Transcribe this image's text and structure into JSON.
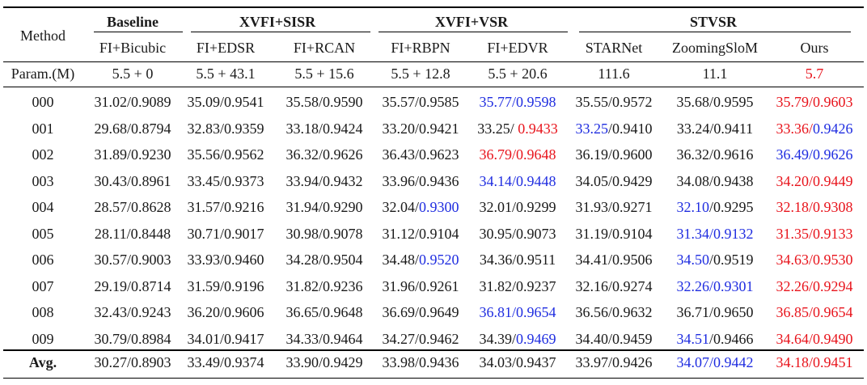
{
  "table": {
    "method_header": "Method",
    "groups": [
      {
        "label": "Baseline"
      },
      {
        "label": "XVFI+SISR"
      },
      {
        "label": "XVFI+VSR"
      },
      {
        "label": "STVSR"
      }
    ],
    "methods": [
      "FI+Bicubic",
      "FI+EDSR",
      "FI+RCAN",
      "FI+RBPN",
      "FI+EDVR",
      "STARNet",
      "ZoomingSloM",
      "Ours"
    ],
    "params_label": "Param.(M)",
    "params": [
      "5.5 + 0",
      "5.5 + 43.1",
      "5.5 + 15.6",
      "5.5 + 12.8",
      "5.5 + 20.6",
      "111.6",
      "11.1",
      "5.7"
    ],
    "params_colors": [
      "",
      "",
      "",
      "",
      "",
      "",
      "",
      "red"
    ],
    "rows": [
      {
        "label": "000",
        "cells": [
          {
            "a": "31.02/0.9089",
            "b": "",
            "ca": "",
            "cb": ""
          },
          {
            "a": "35.09/0.9541",
            "b": "",
            "ca": "",
            "cb": ""
          },
          {
            "a": "35.58/0.9590",
            "b": "",
            "ca": "",
            "cb": ""
          },
          {
            "a": "35.57/0.9585",
            "b": "",
            "ca": "",
            "cb": ""
          },
          {
            "a": "35.77/",
            "b": "0.9598",
            "ca": "blue",
            "cb": "blue"
          },
          {
            "a": "35.55/0.9572",
            "b": "",
            "ca": "",
            "cb": ""
          },
          {
            "a": "35.68/0.9595",
            "b": "",
            "ca": "",
            "cb": ""
          },
          {
            "a": "35.79/",
            "b": "0.9603",
            "ca": "red",
            "cb": "red"
          }
        ]
      },
      {
        "label": "001",
        "cells": [
          {
            "a": "29.68/0.8794",
            "b": "",
            "ca": "",
            "cb": ""
          },
          {
            "a": "32.83/0.9359",
            "b": "",
            "ca": "",
            "cb": ""
          },
          {
            "a": "33.18/0.9424",
            "b": "",
            "ca": "",
            "cb": ""
          },
          {
            "a": "33.20/0.9421",
            "b": "",
            "ca": "",
            "cb": ""
          },
          {
            "a": "33.25/ ",
            "b": "0.9433",
            "ca": "",
            "cb": "red"
          },
          {
            "a": "33.25",
            "b": "/0.9410",
            "ca": "blue",
            "cb": ""
          },
          {
            "a": "33.24/0.9411",
            "b": "",
            "ca": "",
            "cb": ""
          },
          {
            "a": "33.36/",
            "b": "0.9426",
            "ca": "red",
            "cb": "blue"
          }
        ]
      },
      {
        "label": "002",
        "cells": [
          {
            "a": "31.89/0.9230",
            "b": "",
            "ca": "",
            "cb": ""
          },
          {
            "a": "35.56/0.9562",
            "b": "",
            "ca": "",
            "cb": ""
          },
          {
            "a": "36.32/0.9626",
            "b": "",
            "ca": "",
            "cb": ""
          },
          {
            "a": "36.43/0.9623",
            "b": "",
            "ca": "",
            "cb": ""
          },
          {
            "a": "36.79/",
            "b": "0.9648",
            "ca": "red",
            "cb": "red"
          },
          {
            "a": "36.19/0.9600",
            "b": "",
            "ca": "",
            "cb": ""
          },
          {
            "a": "36.32/0.9616",
            "b": "",
            "ca": "",
            "cb": ""
          },
          {
            "a": "36.49/",
            "b": "0.9626",
            "ca": "blue",
            "cb": "blue"
          }
        ]
      },
      {
        "label": "003",
        "cells": [
          {
            "a": "30.43/0.8961",
            "b": "",
            "ca": "",
            "cb": ""
          },
          {
            "a": "33.45/0.9373",
            "b": "",
            "ca": "",
            "cb": ""
          },
          {
            "a": "33.94/0.9432",
            "b": "",
            "ca": "",
            "cb": ""
          },
          {
            "a": "33.96/0.9436",
            "b": "",
            "ca": "",
            "cb": ""
          },
          {
            "a": "34.14/",
            "b": "0.9448",
            "ca": "blue",
            "cb": "blue"
          },
          {
            "a": "34.05/0.9429",
            "b": "",
            "ca": "",
            "cb": ""
          },
          {
            "a": "34.08/0.9438",
            "b": "",
            "ca": "",
            "cb": ""
          },
          {
            "a": "34.20/",
            "b": "0.9449",
            "ca": "red",
            "cb": "red"
          }
        ]
      },
      {
        "label": "004",
        "cells": [
          {
            "a": "28.57/0.8628",
            "b": "",
            "ca": "",
            "cb": ""
          },
          {
            "a": "31.57/0.9216",
            "b": "",
            "ca": "",
            "cb": ""
          },
          {
            "a": "31.94/0.9290",
            "b": "",
            "ca": "",
            "cb": ""
          },
          {
            "a": "32.04/",
            "b": "0.9300",
            "ca": "",
            "cb": "blue"
          },
          {
            "a": "32.01/0.9299",
            "b": "",
            "ca": "",
            "cb": ""
          },
          {
            "a": "31.93/0.9271",
            "b": "",
            "ca": "",
            "cb": ""
          },
          {
            "a": "32.10",
            "b": "/0.9295",
            "ca": "blue",
            "cb": ""
          },
          {
            "a": "32.18/",
            "b": "0.9308",
            "ca": "red",
            "cb": "red"
          }
        ]
      },
      {
        "label": "005",
        "cells": [
          {
            "a": "28.11/0.8448",
            "b": "",
            "ca": "",
            "cb": ""
          },
          {
            "a": "30.71/0.9017",
            "b": "",
            "ca": "",
            "cb": ""
          },
          {
            "a": "30.98/0.9078",
            "b": "",
            "ca": "",
            "cb": ""
          },
          {
            "a": "31.12/0.9104",
            "b": "",
            "ca": "",
            "cb": ""
          },
          {
            "a": "30.95/0.9073",
            "b": "",
            "ca": "",
            "cb": ""
          },
          {
            "a": "31.19/0.9104",
            "b": "",
            "ca": "",
            "cb": ""
          },
          {
            "a": "31.34/",
            "b": "0.9132",
            "ca": "blue",
            "cb": "blue"
          },
          {
            "a": "31.35/",
            "b": "0.9133",
            "ca": "red",
            "cb": "red"
          }
        ]
      },
      {
        "label": "006",
        "cells": [
          {
            "a": "30.57/0.9003",
            "b": "",
            "ca": "",
            "cb": ""
          },
          {
            "a": "33.93/0.9460",
            "b": "",
            "ca": "",
            "cb": ""
          },
          {
            "a": "34.28/0.9504",
            "b": "",
            "ca": "",
            "cb": ""
          },
          {
            "a": "34.48/",
            "b": "0.9520",
            "ca": "",
            "cb": "blue"
          },
          {
            "a": "34.36/0.9511",
            "b": "",
            "ca": "",
            "cb": ""
          },
          {
            "a": "34.41/0.9506",
            "b": "",
            "ca": "",
            "cb": ""
          },
          {
            "a": "34.50",
            "b": "/0.9519",
            "ca": "blue",
            "cb": ""
          },
          {
            "a": "34.63/",
            "b": "0.9530",
            "ca": "red",
            "cb": "red"
          }
        ]
      },
      {
        "label": "007",
        "cells": [
          {
            "a": "29.19/0.8714",
            "b": "",
            "ca": "",
            "cb": ""
          },
          {
            "a": "31.59/0.9196",
            "b": "",
            "ca": "",
            "cb": ""
          },
          {
            "a": "31.82/0.9236",
            "b": "",
            "ca": "",
            "cb": ""
          },
          {
            "a": "31.96/0.9261",
            "b": "",
            "ca": "",
            "cb": ""
          },
          {
            "a": "31.82/0.9237",
            "b": "",
            "ca": "",
            "cb": ""
          },
          {
            "a": "32.16/0.9274",
            "b": "",
            "ca": "",
            "cb": ""
          },
          {
            "a": "32.26/",
            "b": "0.9301",
            "ca": "blue",
            "cb": "blue"
          },
          {
            "a": "32.26/",
            "b": "0.9294",
            "ca": "red",
            "cb": "red"
          }
        ]
      },
      {
        "label": "008",
        "cells": [
          {
            "a": "32.43/0.9243",
            "b": "",
            "ca": "",
            "cb": ""
          },
          {
            "a": "36.20/0.9606",
            "b": "",
            "ca": "",
            "cb": ""
          },
          {
            "a": "36.65/0.9648",
            "b": "",
            "ca": "",
            "cb": ""
          },
          {
            "a": "36.69/0.9649",
            "b": "",
            "ca": "",
            "cb": ""
          },
          {
            "a": "36.81/",
            "b": "0.9654",
            "ca": "blue",
            "cb": "blue"
          },
          {
            "a": "36.56/0.9632",
            "b": "",
            "ca": "",
            "cb": ""
          },
          {
            "a": "36.71/0.9650",
            "b": "",
            "ca": "",
            "cb": ""
          },
          {
            "a": "36.85/",
            "b": "0.9654",
            "ca": "red",
            "cb": "red"
          }
        ]
      },
      {
        "label": "009",
        "cells": [
          {
            "a": "30.79/0.8984",
            "b": "",
            "ca": "",
            "cb": ""
          },
          {
            "a": "34.01/0.9417",
            "b": "",
            "ca": "",
            "cb": ""
          },
          {
            "a": "34.33/0.9464",
            "b": "",
            "ca": "",
            "cb": ""
          },
          {
            "a": "34.27/0.9462",
            "b": "",
            "ca": "",
            "cb": ""
          },
          {
            "a": "34.39/",
            "b": "0.9469",
            "ca": "",
            "cb": "blue"
          },
          {
            "a": "34.40/0.9459",
            "b": "",
            "ca": "",
            "cb": ""
          },
          {
            "a": "34.51",
            "b": "/0.9466",
            "ca": "blue",
            "cb": ""
          },
          {
            "a": "34.64/",
            "b": "0.9490",
            "ca": "red",
            "cb": "red"
          }
        ]
      }
    ],
    "avg": {
      "label": "Avg.",
      "cells": [
        {
          "a": "30.27/0.8903",
          "b": "",
          "ca": "",
          "cb": ""
        },
        {
          "a": "33.49/0.9374",
          "b": "",
          "ca": "",
          "cb": ""
        },
        {
          "a": "33.90/0.9429",
          "b": "",
          "ca": "",
          "cb": ""
        },
        {
          "a": "33.98/0.9436",
          "b": "",
          "ca": "",
          "cb": ""
        },
        {
          "a": "34.03/0.9437",
          "b": "",
          "ca": "",
          "cb": ""
        },
        {
          "a": "33.97/0.9426",
          "b": "",
          "ca": "",
          "cb": ""
        },
        {
          "a": "34.07/",
          "b": "0.9442",
          "ca": "blue",
          "cb": "blue"
        },
        {
          "a": "34.18/",
          "b": "0.9451",
          "ca": "red",
          "cb": "red"
        }
      ]
    },
    "colors": {
      "red": "#e8141c",
      "blue": "#1f2de0",
      "text": "#1a1a1a",
      "rule": "#000000"
    }
  }
}
